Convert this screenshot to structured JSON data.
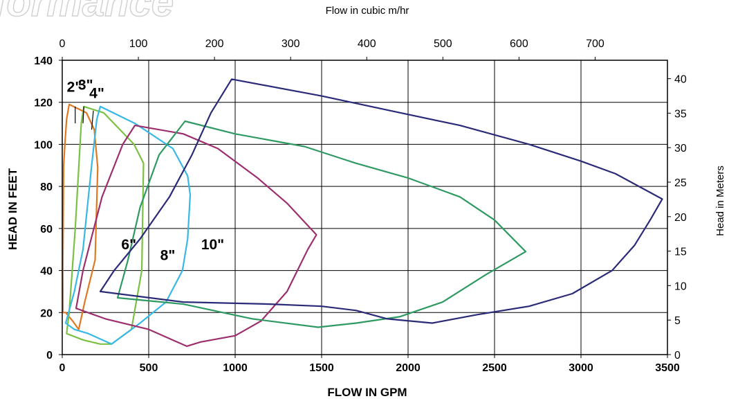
{
  "watermark": "formance",
  "chart_data": {
    "type": "line",
    "xlabel": "FLOW IN GPM",
    "ylabel": "HEAD IN FEET",
    "x2label": "Flow in cubic m/hr",
    "y2label": "Head in Meters",
    "xlim": [
      0,
      3500
    ],
    "ylim": [
      0,
      140
    ],
    "x2lim": [
      0,
      795
    ],
    "y2lim": [
      0,
      42.67
    ],
    "x_ticks": [
      0,
      500,
      1000,
      1500,
      2000,
      2500,
      3000,
      3500
    ],
    "y_ticks": [
      0,
      20,
      40,
      60,
      80,
      100,
      120,
      140
    ],
    "x2_ticks": [
      0,
      100,
      200,
      300,
      400,
      500,
      600,
      700
    ],
    "y2_ticks": [
      0,
      5,
      10,
      15,
      20,
      25,
      30,
      35,
      40
    ],
    "grid": true,
    "series": [
      {
        "name": "2\"",
        "color": "#e07820",
        "label_pos": [
          70,
          125
        ],
        "leader": [
          [
            75,
            118
          ],
          [
            75,
            110
          ]
        ],
        "points": [
          [
            20,
            20
          ],
          [
            60,
            16
          ],
          [
            95,
            12
          ],
          [
            130,
            25
          ],
          [
            190,
            45
          ],
          [
            205,
            89
          ],
          [
            185,
            107
          ],
          [
            140,
            115
          ],
          [
            40,
            119
          ],
          [
            25,
            112
          ],
          [
            15,
            100
          ],
          [
            8,
            90
          ],
          [
            5,
            60
          ],
          [
            3,
            40
          ],
          [
            4,
            20
          ],
          [
            20,
            20
          ]
        ]
      },
      {
        "name": "3\"",
        "color": "#7ac143",
        "label_pos": [
          135,
          126
        ],
        "leader": [
          [
            125,
            118
          ],
          [
            120,
            110
          ]
        ],
        "points": [
          [
            25,
            10
          ],
          [
            120,
            7
          ],
          [
            220,
            5
          ],
          [
            285,
            5
          ],
          [
            400,
            12
          ],
          [
            460,
            40
          ],
          [
            470,
            91
          ],
          [
            415,
            100
          ],
          [
            240,
            115
          ],
          [
            125,
            118
          ],
          [
            110,
            110
          ],
          [
            75,
            60
          ],
          [
            40,
            20
          ],
          [
            25,
            10
          ]
        ]
      },
      {
        "name": "4\"",
        "color": "#38b8e6",
        "label_pos": [
          200,
          122
        ],
        "leader": [
          [
            180,
            116
          ],
          [
            170,
            107
          ]
        ],
        "points": [
          [
            20,
            15
          ],
          [
            70,
            12
          ],
          [
            150,
            10
          ],
          [
            285,
            5
          ],
          [
            450,
            15
          ],
          [
            600,
            25
          ],
          [
            695,
            40
          ],
          [
            725,
            55
          ],
          [
            740,
            76
          ],
          [
            725,
            85
          ],
          [
            640,
            98
          ],
          [
            420,
            110
          ],
          [
            220,
            118
          ],
          [
            200,
            112
          ],
          [
            170,
            90
          ],
          [
            120,
            50
          ],
          [
            70,
            30
          ],
          [
            20,
            15
          ]
        ]
      },
      {
        "name": "6\"",
        "color": "#9c2e6e",
        "label_pos": [
          385,
          50
        ],
        "points": [
          [
            80,
            22
          ],
          [
            250,
            17
          ],
          [
            500,
            12
          ],
          [
            720,
            4
          ],
          [
            800,
            6
          ],
          [
            1000,
            9
          ],
          [
            1150,
            16
          ],
          [
            1300,
            30
          ],
          [
            1420,
            50
          ],
          [
            1470,
            57
          ],
          [
            1300,
            72
          ],
          [
            1130,
            84
          ],
          [
            900,
            98
          ],
          [
            700,
            105
          ],
          [
            420,
            109
          ],
          [
            350,
            100
          ],
          [
            230,
            75
          ],
          [
            120,
            40
          ],
          [
            80,
            22
          ]
        ]
      },
      {
        "name": "8\"",
        "color": "#2e9a62",
        "label_pos": [
          610,
          45
        ],
        "points": [
          [
            320,
            27
          ],
          [
            700,
            24
          ],
          [
            1100,
            17
          ],
          [
            1480,
            13
          ],
          [
            1700,
            15
          ],
          [
            1950,
            18
          ],
          [
            2200,
            25
          ],
          [
            2450,
            38
          ],
          [
            2680,
            49
          ],
          [
            2500,
            64
          ],
          [
            2300,
            75
          ],
          [
            2000,
            84
          ],
          [
            1700,
            91
          ],
          [
            1400,
            99
          ],
          [
            1000,
            105
          ],
          [
            710,
            111
          ],
          [
            560,
            95
          ],
          [
            450,
            70
          ],
          [
            380,
            45
          ],
          [
            320,
            27
          ]
        ]
      },
      {
        "name": "10\"",
        "color": "#2a2a78",
        "label_pos": [
          870,
          50
        ],
        "points": [
          [
            220,
            30
          ],
          [
            700,
            25
          ],
          [
            1200,
            24
          ],
          [
            1500,
            23
          ],
          [
            1700,
            21
          ],
          [
            1880,
            17
          ],
          [
            2140,
            15
          ],
          [
            2400,
            19
          ],
          [
            2700,
            23
          ],
          [
            2950,
            29
          ],
          [
            3180,
            40
          ],
          [
            3310,
            52
          ],
          [
            3400,
            64
          ],
          [
            3470,
            74
          ],
          [
            3200,
            86
          ],
          [
            3000,
            92
          ],
          [
            2700,
            100
          ],
          [
            2300,
            109
          ],
          [
            1900,
            116
          ],
          [
            1500,
            123
          ],
          [
            980,
            131
          ],
          [
            860,
            115
          ],
          [
            750,
            95
          ],
          [
            620,
            75
          ],
          [
            450,
            55
          ],
          [
            300,
            40
          ],
          [
            220,
            30
          ]
        ]
      }
    ]
  }
}
